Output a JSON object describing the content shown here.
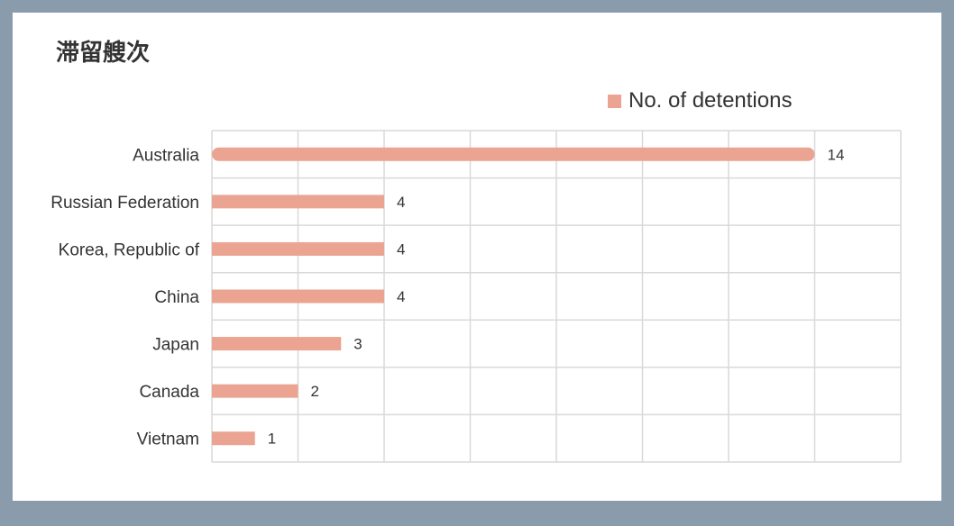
{
  "title": "滞留艘次",
  "colors": {
    "bar": "#eaa491",
    "grid": "#d9d9d9",
    "background": "#8a9bab"
  },
  "chart_data": {
    "type": "bar",
    "orientation": "horizontal",
    "title": "滞留艘次",
    "categories": [
      "Australia",
      "Russian Federation",
      "Korea, Republic of",
      "China",
      "Japan",
      "Canada",
      "Vietnam"
    ],
    "series": [
      {
        "name": "No. of detentions",
        "values": [
          14,
          4,
          4,
          4,
          3,
          2,
          1
        ]
      }
    ],
    "xlim": [
      0,
      16
    ],
    "grid": true,
    "legend": "top-right"
  }
}
